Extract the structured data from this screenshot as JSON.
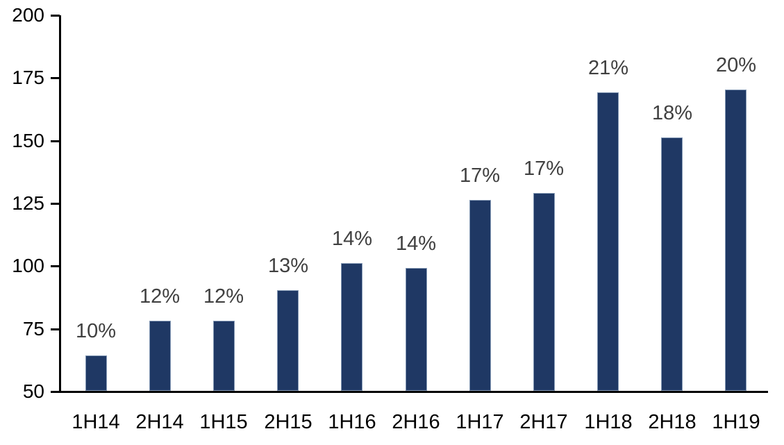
{
  "chart_data": {
    "type": "bar",
    "categories": [
      "1H14",
      "2H14",
      "1H15",
      "2H15",
      "1H16",
      "2H16",
      "1H17",
      "2H17",
      "1H18",
      "2H18",
      "1H19"
    ],
    "values": [
      64,
      78,
      78,
      90,
      101,
      99,
      126,
      129,
      169,
      151,
      170
    ],
    "bar_labels": [
      "10%",
      "12%",
      "12%",
      "13%",
      "14%",
      "14%",
      "17%",
      "17%",
      "21%",
      "18%",
      "20%"
    ],
    "y_ticks": [
      200,
      175,
      150,
      125,
      100,
      75,
      50
    ],
    "ylim": [
      50,
      200
    ],
    "grid": false,
    "legend": false,
    "colors": {
      "bar_fill": "#1f3864",
      "bar_border": "#8499b5",
      "bar_label_text": "#404040",
      "axis_text": "#000000",
      "axis_line": "#000000",
      "background": "#ffffff"
    }
  }
}
